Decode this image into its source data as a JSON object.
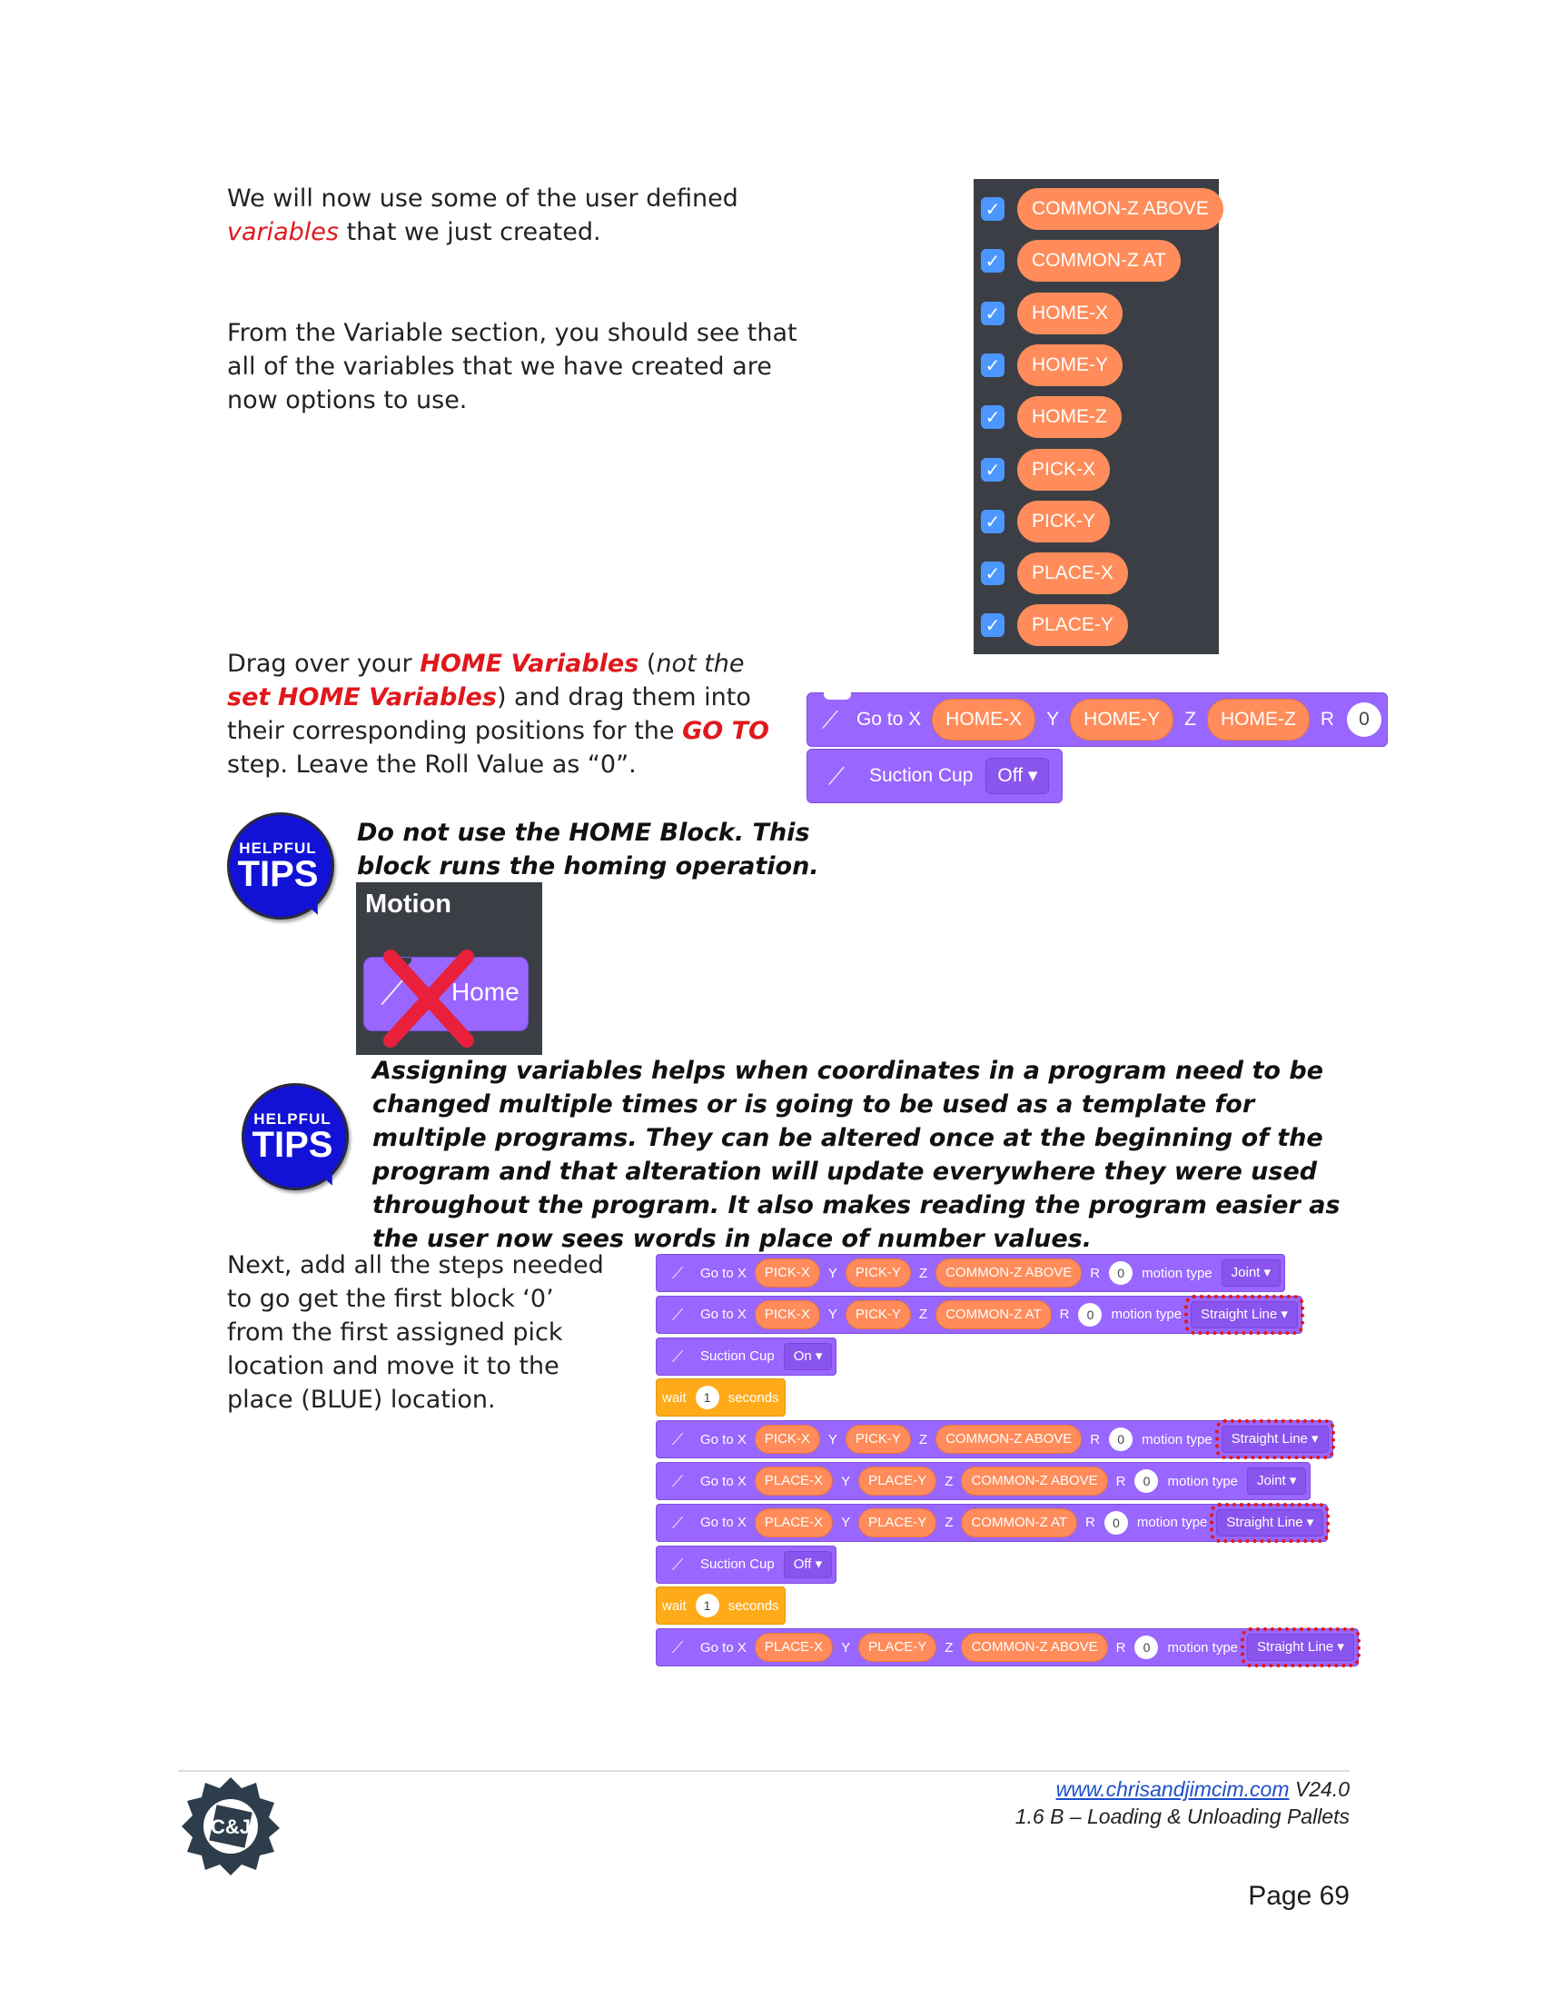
{
  "intro": {
    "line_a": "We will now use some of the user defined",
    "line_b_red": "variables",
    "line_b_rest": " that we just created."
  },
  "variable_section_text": "From the Variable section, you should see that all of the variables that we have created are now options to use.",
  "variables_palette": {
    "items": [
      "COMMON-Z ABOVE",
      "COMMON-Z AT",
      "HOME-X",
      "HOME-Y",
      "HOME-Z",
      "PICK-X",
      "PICK-Y",
      "PLACE-X",
      "PLACE-Y"
    ]
  },
  "drag_text": {
    "p1": "Drag over your ",
    "home_vars": "HOME Variables",
    "p2": " (",
    "not_the": "not the ",
    "set_word": "set",
    "home_vars2": "HOME Variables",
    "p3": ") and drag them into their corresponding positions for the ",
    "goto": "GO TO",
    "p4": " step. Leave the Roll Value as “0”."
  },
  "goto_block": {
    "label": "Go to X",
    "x": "HOME-X",
    "y_label": "Y",
    "y": "HOME-Y",
    "z_label": "Z",
    "z": "HOME-Z",
    "r_label": "R",
    "r": "0"
  },
  "suction_block": {
    "label": "Suction Cup",
    "value": "Off ▾"
  },
  "tips_badge": {
    "line1": "HELPFUL",
    "line2": "TIPS"
  },
  "tip1": {
    "line1": "Do not use the HOME Block.  This",
    "line2": "block runs the homing operation."
  },
  "motion_panel": {
    "title": "Motion",
    "block": "Home"
  },
  "tip2": {
    "text": "Assigning variables helps when coordinates in a program need to be changed multiple times or is going to be used as a template for multiple programs. They can be altered once at the beginning of the program and that alteration will update everywhere they were used throughout the program.  It also makes reading the program easier as the user now sees words in place of number values."
  },
  "next_text": "Next, add all the steps needed to go get the first block ‘0’ from the first assigned pick location and move it to the place (BLUE) location.",
  "program": {
    "labels": {
      "goto": "Go to X",
      "y": "Y",
      "z": "Z",
      "r": "R",
      "motion": "motion type",
      "suction": "Suction Cup",
      "wait": "wait",
      "seconds": "seconds"
    },
    "rows": [
      {
        "type": "goto",
        "x": "PICK-X",
        "y": "PICK-Y",
        "z": "COMMON-Z ABOVE",
        "r": "0",
        "mt": "Joint ▾",
        "hl": false
      },
      {
        "type": "goto",
        "x": "PICK-X",
        "y": "PICK-Y",
        "z": "COMMON-Z AT",
        "r": "0",
        "mt": "Straight Line ▾",
        "hl": true
      },
      {
        "type": "suction",
        "value": "On ▾"
      },
      {
        "type": "wait",
        "value": "1"
      },
      {
        "type": "goto",
        "x": "PICK-X",
        "y": "PICK-Y",
        "z": "COMMON-Z ABOVE",
        "r": "0",
        "mt": "Straight Line ▾",
        "hl": true
      },
      {
        "type": "goto",
        "x": "PLACE-X",
        "y": "PLACE-Y",
        "z": "COMMON-Z ABOVE",
        "r": "0",
        "mt": "Joint ▾",
        "hl": false
      },
      {
        "type": "goto",
        "x": "PLACE-X",
        "y": "PLACE-Y",
        "z": "COMMON-Z AT",
        "r": "0",
        "mt": "Straight Line ▾",
        "hl": true
      },
      {
        "type": "suction",
        "value": "Off ▾"
      },
      {
        "type": "wait",
        "value": "1"
      },
      {
        "type": "goto",
        "x": "PLACE-X",
        "y": "PLACE-Y",
        "z": "COMMON-Z ABOVE",
        "r": "0",
        "mt": "Straight Line ▾",
        "hl": true
      }
    ]
  },
  "footer": {
    "link": "www.chrisandjimcim.com",
    "version": " V24.0",
    "subtitle": "1.6 B – Loading & Unloading Pallets",
    "page": "Page 69",
    "logo_text": "C&J"
  }
}
